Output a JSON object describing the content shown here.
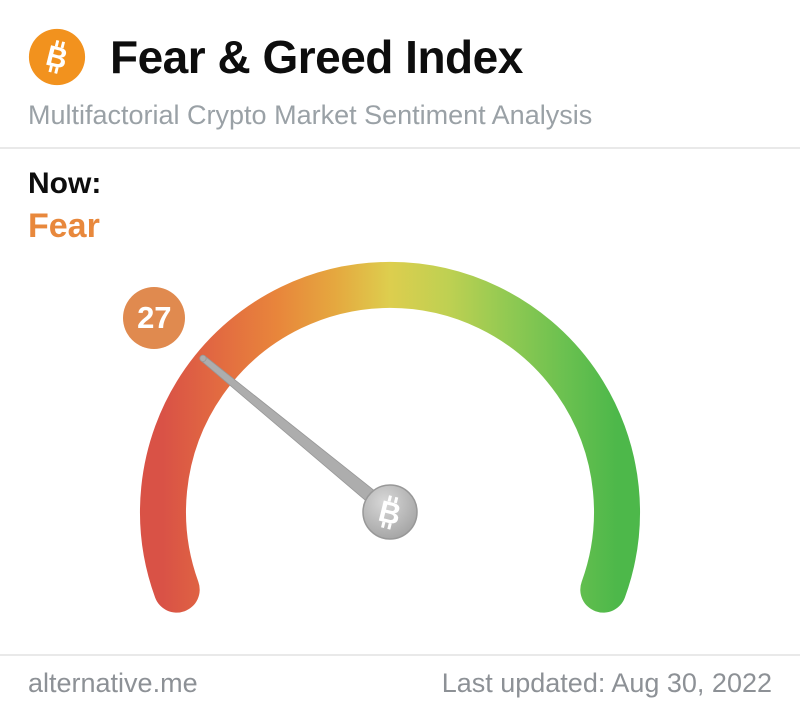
{
  "header": {
    "title": "Fear & Greed Index",
    "subtitle": "Multifactorial Crypto Market Sentiment Analysis"
  },
  "status": {
    "now_label": "Now:",
    "classification": "Fear"
  },
  "footer": {
    "site": "alternative.me",
    "last_updated": "Last updated: Aug 30, 2022"
  },
  "icons": {
    "bitcoin_glyph": "B"
  },
  "colors": {
    "bitcoin_orange": "#f2921e",
    "classification_orange": "#e8883c",
    "badge_orange": "#e08a4f",
    "needle_gray": "#adadad"
  },
  "chart_data": {
    "type": "gauge",
    "title": "Fear & Greed Index",
    "value": 27,
    "min": 0,
    "max": 100,
    "classification": "Fear",
    "arc_span_degrees": 220,
    "scale": [
      {
        "stop": 0,
        "color": "#d95246"
      },
      {
        "stop": 12,
        "color": "#e26a41"
      },
      {
        "stop": 25,
        "color": "#e8853b"
      },
      {
        "stop": 38,
        "color": "#e5a83f"
      },
      {
        "stop": 50,
        "color": "#ddce4e"
      },
      {
        "stop": 63,
        "color": "#bed052"
      },
      {
        "stop": 75,
        "color": "#94ca52"
      },
      {
        "stop": 88,
        "color": "#6cc150"
      },
      {
        "stop": 100,
        "color": "#4db84a"
      }
    ]
  }
}
